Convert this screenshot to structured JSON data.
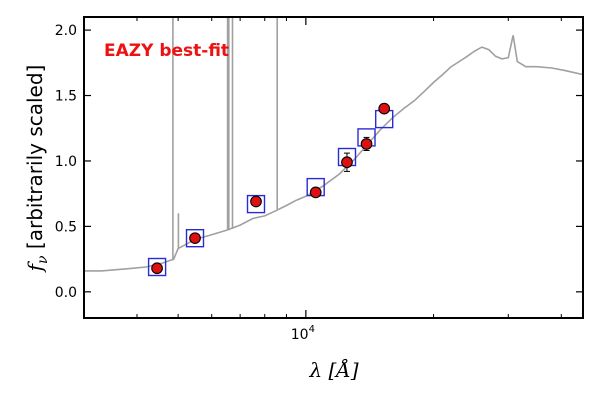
{
  "chart_data": {
    "type": "scatter",
    "title": "",
    "xlabel": "λ [Å]",
    "ylabel_parts": {
      "symbol": "f",
      "subscript": "ν",
      "text": " [arbitrarily scaled]"
    },
    "xscale": "log",
    "xlim": [
      3000,
      45000
    ],
    "ylim": [
      -0.2,
      2.1
    ],
    "yticks": [
      {
        "value": 0.0,
        "label": "0.0"
      },
      {
        "value": 0.5,
        "label": "0.5"
      },
      {
        "value": 1.0,
        "label": "1.0"
      },
      {
        "value": 1.5,
        "label": "1.5"
      },
      {
        "value": 2.0,
        "label": "2.0"
      }
    ],
    "xticks_major": [
      {
        "value": 10000,
        "base": "10",
        "exp": "4"
      }
    ],
    "xticks_minor": [
      4000,
      5000,
      6000,
      7000,
      8000,
      9000,
      20000,
      30000,
      40000
    ],
    "annotation": {
      "text": "EAZY best-fit",
      "color": "#ee1111"
    },
    "grid": false,
    "legend": "none",
    "colors": {
      "spectrum": "#a0a0a0",
      "model_box": "#2a2ad8",
      "observed": "#dd1111",
      "frame": "#000000"
    },
    "series": [
      {
        "kind": "observed",
        "points": [
          {
            "x": 4460,
            "y": 0.18,
            "err": 0.02
          },
          {
            "x": 5480,
            "y": 0.41,
            "err": 0.02
          },
          {
            "x": 7630,
            "y": 0.69,
            "err": 0.02
          },
          {
            "x": 10550,
            "y": 0.76,
            "err": 0.03
          },
          {
            "x": 12500,
            "y": 0.99,
            "err": 0.07
          },
          {
            "x": 13900,
            "y": 1.13,
            "err": 0.05
          },
          {
            "x": 15300,
            "y": 1.4,
            "err": 0.03
          }
        ]
      },
      {
        "kind": "model",
        "points": [
          {
            "x": 4460,
            "y": 0.19
          },
          {
            "x": 5480,
            "y": 0.41
          },
          {
            "x": 7630,
            "y": 0.67
          },
          {
            "x": 10550,
            "y": 0.8
          },
          {
            "x": 12500,
            "y": 1.03
          },
          {
            "x": 13900,
            "y": 1.18
          },
          {
            "x": 15300,
            "y": 1.32
          }
        ]
      },
      {
        "kind": "spectrum",
        "points": [
          [
            3000,
            0.16
          ],
          [
            3300,
            0.16
          ],
          [
            3600,
            0.17
          ],
          [
            3900,
            0.18
          ],
          [
            4200,
            0.19
          ],
          [
            4600,
            0.22
          ],
          [
            4880,
            0.25
          ],
          [
            5000,
            0.33
          ],
          [
            5200,
            0.36
          ],
          [
            5400,
            0.39
          ],
          [
            5600,
            0.41
          ],
          [
            5900,
            0.43
          ],
          [
            6200,
            0.45
          ],
          [
            6500,
            0.47
          ],
          [
            7000,
            0.51
          ],
          [
            7500,
            0.56
          ],
          [
            8000,
            0.58
          ],
          [
            8500,
            0.62
          ],
          [
            9000,
            0.66
          ],
          [
            9500,
            0.7
          ],
          [
            10000,
            0.73
          ],
          [
            10500,
            0.77
          ],
          [
            11000,
            0.81
          ],
          [
            12000,
            0.9
          ],
          [
            13000,
            1.01
          ],
          [
            14000,
            1.13
          ],
          [
            15000,
            1.24
          ],
          [
            16000,
            1.33
          ],
          [
            17000,
            1.4
          ],
          [
            18000,
            1.46
          ],
          [
            19000,
            1.53
          ],
          [
            20000,
            1.6
          ],
          [
            21000,
            1.66
          ],
          [
            22000,
            1.72
          ],
          [
            23000,
            1.76
          ],
          [
            24000,
            1.8
          ],
          [
            25000,
            1.84
          ],
          [
            26000,
            1.87
          ],
          [
            27000,
            1.85
          ],
          [
            28000,
            1.8
          ],
          [
            29000,
            1.78
          ],
          [
            30000,
            1.79
          ],
          [
            30800,
            1.96
          ],
          [
            31500,
            1.76
          ],
          [
            33000,
            1.72
          ],
          [
            35000,
            1.72
          ],
          [
            38000,
            1.71
          ],
          [
            41000,
            1.69
          ],
          [
            45000,
            1.66
          ]
        ]
      },
      {
        "kind": "emission_lines",
        "points": [
          {
            "x": 4861,
            "base": 0.24,
            "peak": 2.1
          },
          {
            "x": 5007,
            "base": 0.33,
            "peak": 0.6
          },
          {
            "x": 6540,
            "base": 0.47,
            "peak": 2.1
          },
          {
            "x": 6583,
            "base": 0.47,
            "peak": 2.1
          },
          {
            "x": 6716,
            "base": 0.48,
            "peak": 2.1
          },
          {
            "x": 8560,
            "base": 0.63,
            "peak": 2.1
          }
        ]
      }
    ]
  }
}
